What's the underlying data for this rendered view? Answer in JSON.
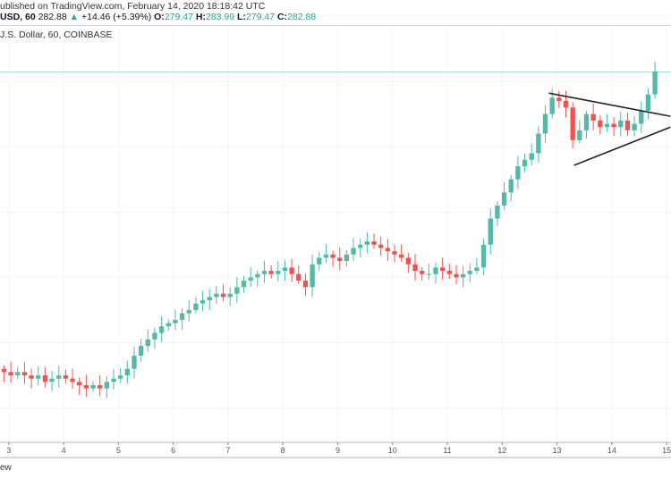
{
  "header": {
    "published": "ublished on TradingView.com, February 14, 2020 18:18:42 UTC",
    "symbol": "USD, 60",
    "last": "282.88",
    "change": "+14.46 (+5.39%)",
    "o_label": "O:",
    "o": "279.47",
    "h_label": "H:",
    "h": "283.99",
    "l_label": "L:",
    "l": "279.47",
    "c_label": "C:",
    "c": "282.88",
    "series_title": "J.S. Dollar, 60, COINBASE",
    "up_icon": "triangle-up"
  },
  "footer": {
    "text": "ew"
  },
  "colors": {
    "up": "#53b9a8",
    "down": "#ef5350",
    "grid": "#f2f4f8",
    "line": "#222222"
  },
  "chart_data": {
    "type": "candlestick",
    "x_ticks": [
      "3",
      "4",
      "5",
      "6",
      "7",
      "8",
      "9",
      "10",
      "11",
      "12",
      "13",
      "14",
      "15"
    ],
    "x_tick_values": [
      3,
      4,
      5,
      6,
      7,
      8,
      9,
      10,
      11,
      12,
      13,
      14,
      15
    ],
    "start_day": 2.85,
    "candle_interval_days": 0.125,
    "first_open": 192,
    "closes": [
      191,
      190,
      191,
      190,
      189,
      190,
      188,
      189,
      190,
      189,
      188,
      187,
      186,
      187,
      186,
      188,
      189,
      190,
      192,
      196,
      199,
      201,
      203,
      205,
      206,
      207,
      209,
      210,
      212,
      213,
      214,
      215,
      214,
      215,
      217,
      219,
      220,
      221,
      222,
      221,
      222,
      223,
      221,
      219,
      217,
      224,
      226,
      227,
      226,
      225,
      227,
      229,
      230,
      231,
      230,
      229,
      228,
      227,
      226,
      224,
      222,
      221,
      221,
      223,
      222,
      221,
      220,
      221,
      222,
      223,
      230,
      238,
      242,
      246,
      250,
      254,
      256,
      258,
      264,
      270,
      275,
      274,
      272,
      262,
      265,
      270,
      268,
      266,
      267,
      266,
      268,
      265,
      267,
      271,
      276,
      283
    ],
    "ylim": [
      169.5,
      304.9
    ],
    "xlim": [
      2.84,
      15.08
    ],
    "last_price": 282.88,
    "drawings": [
      {
        "name": "triangle-upper-line",
        "from": [
          12.85,
          276.4
        ],
        "to": [
          15.07,
          269.3
        ]
      },
      {
        "name": "triangle-lower-line",
        "from": [
          13.31,
          254.3
        ],
        "to": [
          15.07,
          266.0
        ]
      }
    ]
  }
}
